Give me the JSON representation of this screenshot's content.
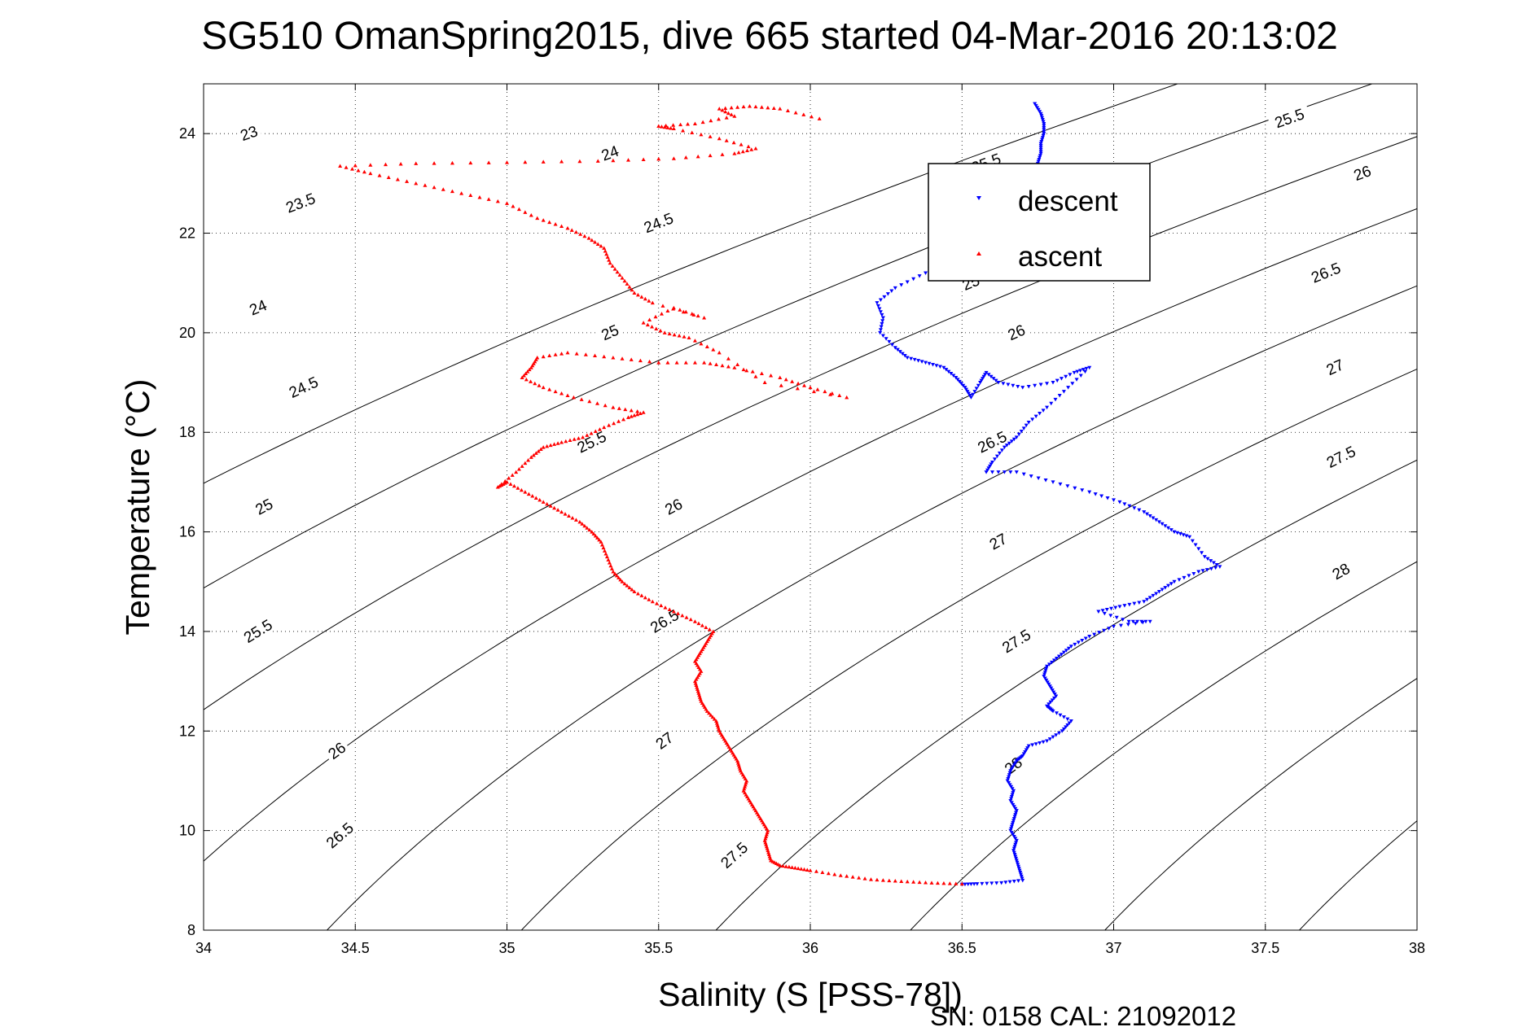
{
  "chart_data": {
    "type": "scatter",
    "title": "SG510 OmanSpring2015, dive 665 started 04-Mar-2016 20:13:02",
    "xlabel": "Salinity (S [PSS-78])",
    "ylabel": "Temperature (°C)",
    "xlim": [
      34,
      38
    ],
    "ylim": [
      8,
      25
    ],
    "x_ticks": [
      "34",
      "34.5",
      "35",
      "35.5",
      "36",
      "36.5",
      "37",
      "37.5",
      "38"
    ],
    "y_ticks": [
      "8",
      "10",
      "12",
      "14",
      "16",
      "18",
      "20",
      "22",
      "24"
    ],
    "grid": true,
    "legend_position": "top-right",
    "calibration_note": "SN: 0158  CAL: 21092012",
    "density_contours": {
      "levels": [
        23,
        23.5,
        24,
        24.5,
        25,
        25.5,
        26,
        26.5,
        27,
        27.5,
        28
      ],
      "labels": [
        {
          "text": "23",
          "s": 34.15,
          "t": 24.0
        },
        {
          "text": "23.5",
          "s": 34.32,
          "t": 22.6
        },
        {
          "text": "24",
          "s": 34.18,
          "t": 20.5
        },
        {
          "text": "24.5",
          "s": 34.33,
          "t": 18.9
        },
        {
          "text": "25",
          "s": 34.2,
          "t": 16.5
        },
        {
          "text": "25.5",
          "s": 34.18,
          "t": 14.0
        },
        {
          "text": "26",
          "s": 34.44,
          "t": 11.6
        },
        {
          "text": "26.5",
          "s": 34.45,
          "t": 9.9
        },
        {
          "text": "24",
          "s": 35.34,
          "t": 23.6
        },
        {
          "text": "24.5",
          "s": 35.5,
          "t": 22.2
        },
        {
          "text": "25",
          "s": 35.34,
          "t": 20.0
        },
        {
          "text": "25.5",
          "s": 35.28,
          "t": 17.8
        },
        {
          "text": "26",
          "s": 35.55,
          "t": 16.5
        },
        {
          "text": "26.5",
          "s": 35.52,
          "t": 14.2
        },
        {
          "text": "27",
          "s": 35.52,
          "t": 11.8
        },
        {
          "text": "27.5",
          "s": 35.75,
          "t": 9.5
        },
        {
          "text": "25.5",
          "s": 36.58,
          "t": 23.4
        },
        {
          "text": "25",
          "s": 36.53,
          "t": 21.0
        },
        {
          "text": "26",
          "s": 36.68,
          "t": 20.0
        },
        {
          "text": "26.5",
          "s": 36.6,
          "t": 17.8
        },
        {
          "text": "27",
          "s": 36.62,
          "t": 15.8
        },
        {
          "text": "27.5",
          "s": 36.68,
          "t": 13.8
        },
        {
          "text": "28",
          "s": 36.67,
          "t": 11.3
        },
        {
          "text": "25.5",
          "s": 37.58,
          "t": 24.3
        },
        {
          "text": "26",
          "s": 37.82,
          "t": 23.2
        },
        {
          "text": "26.5",
          "s": 37.7,
          "t": 21.2
        },
        {
          "text": "27",
          "s": 37.73,
          "t": 19.3
        },
        {
          "text": "27.5",
          "s": 37.75,
          "t": 17.5
        },
        {
          "text": "28",
          "s": 37.75,
          "t": 15.2
        }
      ]
    },
    "series": [
      {
        "name": "descent",
        "color": "#0000ff",
        "marker": "triangle-down",
        "points": [
          [
            36.74,
            24.6
          ],
          [
            36.76,
            24.4
          ],
          [
            36.77,
            24.2
          ],
          [
            36.77,
            24.0
          ],
          [
            36.76,
            23.8
          ],
          [
            36.76,
            23.6
          ],
          [
            36.75,
            23.4
          ],
          [
            36.73,
            23.2
          ],
          [
            36.7,
            23.0
          ],
          [
            36.65,
            22.8
          ],
          [
            36.58,
            22.4
          ],
          [
            36.45,
            21.6
          ],
          [
            36.38,
            21.2
          ],
          [
            36.28,
            20.9
          ],
          [
            36.22,
            20.6
          ],
          [
            36.24,
            20.3
          ],
          [
            36.23,
            20.0
          ],
          [
            36.28,
            19.7
          ],
          [
            36.32,
            19.5
          ],
          [
            36.38,
            19.4
          ],
          [
            36.44,
            19.3
          ],
          [
            36.48,
            19.1
          ],
          [
            36.51,
            18.9
          ],
          [
            36.53,
            18.7
          ],
          [
            36.56,
            19.0
          ],
          [
            36.58,
            19.2
          ],
          [
            36.62,
            19.0
          ],
          [
            36.7,
            18.9
          ],
          [
            36.8,
            19.0
          ],
          [
            36.87,
            19.2
          ],
          [
            36.92,
            19.3
          ],
          [
            36.85,
            18.9
          ],
          [
            36.78,
            18.5
          ],
          [
            36.72,
            18.2
          ],
          [
            36.68,
            17.9
          ],
          [
            36.64,
            17.7
          ],
          [
            36.6,
            17.4
          ],
          [
            36.58,
            17.2
          ],
          [
            36.68,
            17.2
          ],
          [
            36.8,
            17.0
          ],
          [
            36.92,
            16.8
          ],
          [
            37.02,
            16.6
          ],
          [
            37.1,
            16.4
          ],
          [
            37.15,
            16.2
          ],
          [
            37.2,
            16.0
          ],
          [
            37.25,
            15.9
          ],
          [
            37.3,
            15.5
          ],
          [
            37.35,
            15.3
          ],
          [
            37.28,
            15.2
          ],
          [
            37.2,
            15.0
          ],
          [
            37.15,
            14.8
          ],
          [
            37.1,
            14.6
          ],
          [
            37.02,
            14.5
          ],
          [
            36.95,
            14.4
          ],
          [
            37.05,
            14.2
          ],
          [
            37.12,
            14.2
          ],
          [
            37.0,
            14.1
          ],
          [
            36.92,
            13.9
          ],
          [
            36.86,
            13.7
          ],
          [
            36.82,
            13.5
          ],
          [
            36.78,
            13.3
          ],
          [
            36.77,
            13.1
          ],
          [
            36.79,
            12.9
          ],
          [
            36.81,
            12.7
          ],
          [
            36.78,
            12.5
          ],
          [
            36.8,
            12.4
          ],
          [
            36.86,
            12.2
          ],
          [
            36.83,
            12.0
          ],
          [
            36.78,
            11.8
          ],
          [
            36.72,
            11.7
          ],
          [
            36.7,
            11.5
          ],
          [
            36.68,
            11.4
          ],
          [
            36.66,
            11.2
          ],
          [
            36.65,
            11.0
          ],
          [
            36.67,
            10.8
          ],
          [
            36.66,
            10.6
          ],
          [
            36.68,
            10.4
          ],
          [
            36.67,
            10.2
          ],
          [
            36.66,
            10.0
          ],
          [
            36.68,
            9.8
          ],
          [
            36.67,
            9.6
          ],
          [
            36.68,
            9.4
          ],
          [
            36.69,
            9.2
          ],
          [
            36.7,
            9.0
          ],
          [
            36.63,
            8.95
          ],
          [
            36.55,
            8.93
          ],
          [
            36.5,
            8.92
          ]
        ]
      },
      {
        "name": "ascent",
        "color": "#ff0000",
        "marker": "triangle-up",
        "points": [
          [
            36.5,
            8.93
          ],
          [
            36.4,
            8.95
          ],
          [
            36.3,
            8.98
          ],
          [
            36.2,
            9.02
          ],
          [
            36.1,
            9.1
          ],
          [
            36.0,
            9.2
          ],
          [
            35.95,
            9.25
          ],
          [
            35.9,
            9.3
          ],
          [
            35.87,
            9.4
          ],
          [
            35.86,
            9.6
          ],
          [
            35.85,
            9.8
          ],
          [
            35.86,
            10.0
          ],
          [
            35.84,
            10.2
          ],
          [
            35.82,
            10.4
          ],
          [
            35.8,
            10.6
          ],
          [
            35.78,
            10.8
          ],
          [
            35.79,
            11.0
          ],
          [
            35.77,
            11.2
          ],
          [
            35.76,
            11.4
          ],
          [
            35.74,
            11.6
          ],
          [
            35.72,
            11.8
          ],
          [
            35.7,
            12.0
          ],
          [
            35.69,
            12.2
          ],
          [
            35.66,
            12.4
          ],
          [
            35.64,
            12.6
          ],
          [
            35.63,
            12.8
          ],
          [
            35.62,
            13.0
          ],
          [
            35.64,
            13.2
          ],
          [
            35.62,
            13.4
          ],
          [
            35.64,
            13.6
          ],
          [
            35.66,
            13.8
          ],
          [
            35.68,
            14.0
          ],
          [
            35.62,
            14.2
          ],
          [
            35.55,
            14.4
          ],
          [
            35.48,
            14.6
          ],
          [
            35.42,
            14.8
          ],
          [
            35.38,
            15.0
          ],
          [
            35.35,
            15.2
          ],
          [
            35.33,
            15.5
          ],
          [
            35.31,
            15.8
          ],
          [
            35.28,
            16.0
          ],
          [
            35.24,
            16.2
          ],
          [
            35.18,
            16.4
          ],
          [
            35.12,
            16.6
          ],
          [
            35.06,
            16.8
          ],
          [
            35.0,
            17.0
          ],
          [
            34.97,
            16.9
          ],
          [
            35.03,
            17.2
          ],
          [
            35.08,
            17.5
          ],
          [
            35.12,
            17.7
          ],
          [
            35.18,
            17.8
          ],
          [
            35.25,
            17.9
          ],
          [
            35.32,
            18.1
          ],
          [
            35.4,
            18.3
          ],
          [
            35.45,
            18.4
          ],
          [
            35.35,
            18.5
          ],
          [
            35.22,
            18.7
          ],
          [
            35.12,
            18.9
          ],
          [
            35.05,
            19.1
          ],
          [
            35.08,
            19.3
          ],
          [
            35.1,
            19.5
          ],
          [
            35.2,
            19.6
          ],
          [
            35.35,
            19.5
          ],
          [
            35.5,
            19.4
          ],
          [
            35.65,
            19.4
          ],
          [
            35.75,
            19.3
          ],
          [
            35.9,
            19.1
          ],
          [
            36.0,
            18.9
          ],
          [
            36.12,
            18.7
          ],
          [
            35.85,
            19.0
          ],
          [
            35.7,
            19.6
          ],
          [
            35.6,
            19.9
          ],
          [
            35.52,
            20.0
          ],
          [
            35.45,
            20.2
          ],
          [
            35.55,
            20.5
          ],
          [
            35.65,
            20.3
          ],
          [
            35.48,
            20.6
          ],
          [
            35.42,
            20.8
          ],
          [
            35.38,
            21.1
          ],
          [
            35.34,
            21.4
          ],
          [
            35.32,
            21.7
          ],
          [
            35.27,
            21.9
          ],
          [
            35.2,
            22.1
          ],
          [
            35.1,
            22.3
          ],
          [
            35.0,
            22.6
          ],
          [
            34.85,
            22.8
          ],
          [
            34.7,
            23.0
          ],
          [
            34.55,
            23.2
          ],
          [
            34.45,
            23.35
          ],
          [
            34.7,
            23.4
          ],
          [
            35.0,
            23.42
          ],
          [
            35.3,
            23.45
          ],
          [
            35.55,
            23.5
          ],
          [
            35.75,
            23.6
          ],
          [
            35.82,
            23.7
          ],
          [
            35.7,
            23.9
          ],
          [
            35.55,
            24.1
          ],
          [
            35.5,
            24.15
          ],
          [
            35.62,
            24.2
          ],
          [
            35.75,
            24.35
          ],
          [
            35.7,
            24.5
          ],
          [
            35.8,
            24.55
          ],
          [
            35.9,
            24.5
          ],
          [
            36.03,
            24.3
          ]
        ]
      }
    ]
  }
}
